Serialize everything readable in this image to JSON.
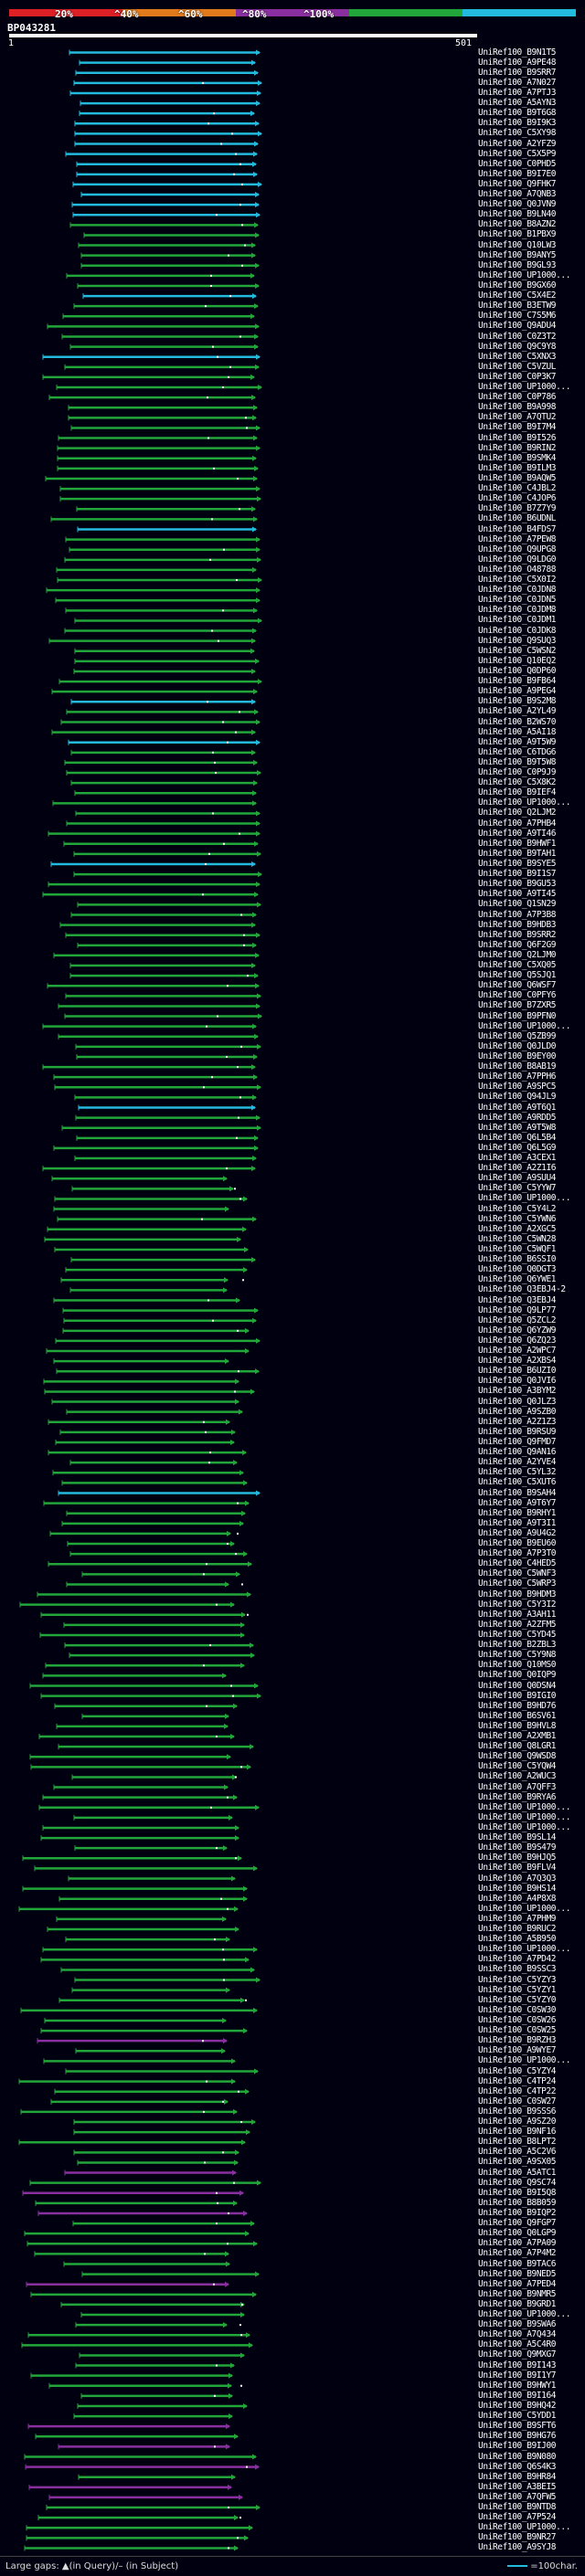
{
  "legend": {
    "segments": [
      {
        "label": "20%",
        "color": "#dd1f26"
      },
      {
        "label": "^40%",
        "color": "#e07a1c"
      },
      {
        "label": "^60%",
        "color": "#8a2fa0"
      },
      {
        "label": "^80%",
        "color": "#22a63a"
      },
      {
        "label": "^100%",
        "color": "#22bbdd"
      }
    ]
  },
  "query": {
    "name": "BP043281",
    "start": "1",
    "end": "501"
  },
  "footer": {
    "left_text": "Large gaps: ▲(in Query)/– (in Subject)",
    "scale_text": "=100char."
  },
  "hits": [
    {
      "label": "UniRef100_B9N1T5",
      "color": "#22bbdd"
    },
    {
      "label": "UniRef100_A9PE48",
      "color": "#22bbdd"
    },
    {
      "label": "UniRef100_B9SRR7",
      "color": "#22bbdd"
    },
    {
      "label": "UniRef100_A7N027",
      "color": "#22bbdd"
    },
    {
      "label": "UniRef100_A7PTJ3",
      "color": "#22bbdd"
    },
    {
      "label": "UniRef100_A5AYN3",
      "color": "#22bbdd"
    },
    {
      "label": "UniRef100_B9T6G8",
      "color": "#22bbdd"
    },
    {
      "label": "UniRef100_B9I9K3",
      "color": "#22bbdd"
    },
    {
      "label": "UniRef100_C5XY98",
      "color": "#22bbdd"
    },
    {
      "label": "UniRef100_A2YFZ9",
      "color": "#22bbdd"
    },
    {
      "label": "UniRef100_C5X5P9",
      "color": "#22bbdd"
    },
    {
      "label": "UniRef100_C0PHD5",
      "color": "#22bbdd"
    },
    {
      "label": "UniRef100_B9I7E0",
      "color": "#22bbdd"
    },
    {
      "label": "UniRef100_Q9FHK7",
      "color": "#22bbdd"
    },
    {
      "label": "UniRef100_A7QNB3",
      "color": "#22bbdd"
    },
    {
      "label": "UniRef100_Q0JVN9",
      "color": "#22bbdd"
    },
    {
      "label": "UniRef100_B9LN40",
      "color": "#22bbdd"
    },
    {
      "label": "UniRef100_B8AZN2",
      "color": "#22a63a"
    },
    {
      "label": "UniRef100_B1PBX9",
      "color": "#22a63a"
    },
    {
      "label": "UniRef100_Q10LW3",
      "color": "#22a63a"
    },
    {
      "label": "UniRef100_B9ANY5",
      "color": "#22a63a"
    },
    {
      "label": "UniRef100_B9GL93",
      "color": "#22a63a"
    },
    {
      "label": "UniRef100_UP1000...",
      "color": "#22a63a"
    },
    {
      "label": "UniRef100_B9GX60",
      "color": "#22a63a"
    },
    {
      "label": "UniRef100_C5X4E2",
      "color": "#22bbdd"
    },
    {
      "label": "UniRef100_B3ETW9",
      "color": "#22a63a"
    },
    {
      "label": "UniRef100_C7S5M6",
      "color": "#22a63a"
    },
    {
      "label": "UniRef100_Q9ADU4",
      "color": "#22a63a"
    },
    {
      "label": "UniRef100_C0Z3T2",
      "color": "#22a63a"
    },
    {
      "label": "UniRef100_Q9C9Y8",
      "color": "#22a63a"
    },
    {
      "label": "UniRef100_C5XNX3",
      "color": "#22bbdd"
    },
    {
      "label": "UniRef100_C5VZUL",
      "color": "#22a63a"
    },
    {
      "label": "UniRef100_C0P3K7",
      "color": "#22a63a"
    },
    {
      "label": "UniRef100_UP1000...",
      "color": "#22a63a"
    },
    {
      "label": "UniRef100_C0P786",
      "color": "#22a63a"
    },
    {
      "label": "UniRef100_B9A998",
      "color": "#22a63a"
    },
    {
      "label": "UniRef100_A7QTU2",
      "color": "#22a63a"
    },
    {
      "label": "UniRef100_B9I7M4",
      "color": "#22a63a"
    },
    {
      "label": "UniRef100_B9I526",
      "color": "#22a63a"
    },
    {
      "label": "UniRef100_B9RIN2",
      "color": "#22a63a"
    },
    {
      "label": "UniRef100_B9SMK4",
      "color": "#22a63a"
    },
    {
      "label": "UniRef100_B9ILM3",
      "color": "#22a63a"
    },
    {
      "label": "UniRef100_B9AQW5",
      "color": "#22a63a"
    },
    {
      "label": "UniRef100_C4JBL2",
      "color": "#22a63a"
    },
    {
      "label": "UniRef100_C4JOP6",
      "color": "#22a63a"
    },
    {
      "label": "UniRef100_B7Z7Y9",
      "color": "#22a63a"
    },
    {
      "label": "UniRef100_B6UDNL",
      "color": "#22a63a"
    },
    {
      "label": "UniRef100_B4FDS7",
      "color": "#22bbdd"
    },
    {
      "label": "UniRef100_A7PEW8",
      "color": "#22a63a"
    },
    {
      "label": "UniRef100_Q9UPG8",
      "color": "#22a63a"
    },
    {
      "label": "UniRef100_Q9LDG0",
      "color": "#22a63a"
    },
    {
      "label": "UniRef100_O48788",
      "color": "#22a63a"
    },
    {
      "label": "UniRef100_C5X0I2",
      "color": "#22a63a"
    },
    {
      "label": "UniRef100_C0JDN8",
      "color": "#22a63a"
    },
    {
      "label": "UniRef100_C0JDN5",
      "color": "#22a63a"
    },
    {
      "label": "UniRef100_C0JDM8",
      "color": "#22a63a"
    },
    {
      "label": "UniRef100_C0JDM1",
      "color": "#22a63a"
    },
    {
      "label": "UniRef100_C0JDK8",
      "color": "#22a63a"
    },
    {
      "label": "UniRef100_Q9SUQ3",
      "color": "#22a63a"
    },
    {
      "label": "UniRef100_C5WSN2",
      "color": "#22a63a"
    },
    {
      "label": "UniRef100_Q10EQ2",
      "color": "#22a63a"
    },
    {
      "label": "UniRef100_Q0DP60",
      "color": "#22a63a"
    },
    {
      "label": "UniRef100_B9FB64",
      "color": "#22a63a"
    },
    {
      "label": "UniRef100_A9PEG4",
      "color": "#22a63a"
    },
    {
      "label": "UniRef100_B9S2M8",
      "color": "#22bbdd"
    },
    {
      "label": "UniRef100_A2YL49",
      "color": "#22a63a"
    },
    {
      "label": "UniRef100_B2WS70",
      "color": "#22a63a"
    },
    {
      "label": "UniRef100_A5AI18",
      "color": "#22a63a"
    },
    {
      "label": "UniRef100_A9T5W9",
      "color": "#22bbdd"
    },
    {
      "label": "UniRef100_C6TDG6",
      "color": "#22a63a"
    },
    {
      "label": "UniRef100_B9T5W8",
      "color": "#22a63a"
    },
    {
      "label": "UniRef100_C0P9J9",
      "color": "#22a63a"
    },
    {
      "label": "UniRef100_C5X8K2",
      "color": "#22a63a"
    },
    {
      "label": "UniRef100_B9IEF4",
      "color": "#22a63a"
    },
    {
      "label": "UniRef100_UP1000...",
      "color": "#22a63a"
    },
    {
      "label": "UniRef100_Q2LJM2",
      "color": "#22a63a"
    },
    {
      "label": "UniRef100_A7PHB4",
      "color": "#22a63a"
    },
    {
      "label": "UniRef100_A9TI46",
      "color": "#22a63a"
    },
    {
      "label": "UniRef100_B9HWF1",
      "color": "#22a63a"
    },
    {
      "label": "UniRef100_B9TAH1",
      "color": "#22a63a"
    },
    {
      "label": "UniRef100_B9SYE5",
      "color": "#22bbdd"
    },
    {
      "label": "UniRef100_B9I1S7",
      "color": "#22a63a"
    },
    {
      "label": "UniRef100_B9GU53",
      "color": "#22a63a"
    },
    {
      "label": "UniRef100_A9TI45",
      "color": "#22a63a"
    },
    {
      "label": "UniRef100_Q1SN29",
      "color": "#22a63a"
    },
    {
      "label": "UniRef100_A7P3B8",
      "color": "#22a63a"
    },
    {
      "label": "UniRef100_B9HDB3",
      "color": "#22a63a"
    },
    {
      "label": "UniRef100_B9SRR2",
      "color": "#22a63a"
    },
    {
      "label": "UniRef100_Q6F2G9",
      "color": "#22a63a"
    },
    {
      "label": "UniRef100_Q2LJM0",
      "color": "#22a63a"
    },
    {
      "label": "UniRef100_C5XQ05",
      "color": "#22a63a"
    },
    {
      "label": "UniRef100_Q5SJQ1",
      "color": "#22a63a"
    },
    {
      "label": "UniRef100_Q6WSF7",
      "color": "#22a63a"
    },
    {
      "label": "UniRef100_C0PFY6",
      "color": "#22a63a"
    },
    {
      "label": "UniRef100_B7ZXR5",
      "color": "#22a63a"
    },
    {
      "label": "UniRef100_B9PFN0",
      "color": "#22a63a"
    },
    {
      "label": "UniRef100_UP1000...",
      "color": "#22a63a"
    },
    {
      "label": "UniRef100_Q5ZB99",
      "color": "#22a63a"
    },
    {
      "label": "UniRef100_Q0JLD0",
      "color": "#22a63a"
    },
    {
      "label": "UniRef100_B9EY00",
      "color": "#22a63a"
    },
    {
      "label": "UniRef100_B8AB19",
      "color": "#22a63a"
    },
    {
      "label": "UniRef100_A7PPH6",
      "color": "#22a63a"
    },
    {
      "label": "UniRef100_A9SPC5",
      "color": "#22a63a"
    },
    {
      "label": "UniRef100_Q94JL9",
      "color": "#22a63a"
    },
    {
      "label": "UniRef100_A9T6Q1",
      "color": "#22bbdd"
    },
    {
      "label": "UniRef100_A9RDD5",
      "color": "#22a63a"
    },
    {
      "label": "UniRef100_A9T5W8",
      "color": "#22a63a"
    },
    {
      "label": "UniRef100_Q6L5B4",
      "color": "#22a63a"
    },
    {
      "label": "UniRef100_Q6L5G9",
      "color": "#22a63a"
    },
    {
      "label": "UniRef100_A3CEX1",
      "color": "#22a63a"
    },
    {
      "label": "UniRef100_A2Z1I6",
      "color": "#22a63a"
    },
    {
      "label": "UniRef100_A9SUU4",
      "color": "#22a63a"
    },
    {
      "label": "UniRef100_C5YYW7",
      "color": "#22a63a"
    },
    {
      "label": "UniRef100_UP1000...",
      "color": "#22a63a"
    },
    {
      "label": "UniRef100_C5Y4L2",
      "color": "#22a63a"
    },
    {
      "label": "UniRef100_C5YWN6",
      "color": "#22a63a"
    },
    {
      "label": "UniRef100_A2XGC5",
      "color": "#22a63a"
    },
    {
      "label": "UniRef100_C5WN28",
      "color": "#22a63a"
    },
    {
      "label": "UniRef100_C5WQF1",
      "color": "#22a63a"
    },
    {
      "label": "UniRef100_B6SSI0",
      "color": "#22a63a"
    },
    {
      "label": "UniRef100_Q0DGT3",
      "color": "#22a63a"
    },
    {
      "label": "UniRef100_Q6YWE1",
      "color": "#22a63a"
    },
    {
      "label": "UniRef100_Q3EBJ4-2",
      "color": "#22a63a"
    },
    {
      "label": "UniRef100_Q3EBJ4",
      "color": "#22a63a"
    },
    {
      "label": "UniRef100_Q9LP77",
      "color": "#22a63a"
    },
    {
      "label": "UniRef100_Q5ZCL2",
      "color": "#22a63a"
    },
    {
      "label": "UniRef100_Q6YZW9",
      "color": "#22a63a"
    },
    {
      "label": "UniRef100_Q6ZQ23",
      "color": "#22a63a"
    },
    {
      "label": "UniRef100_A2WPC7",
      "color": "#22a63a"
    },
    {
      "label": "UniRef100_A2XBS4",
      "color": "#22a63a"
    },
    {
      "label": "UniRef100_B6UZI0",
      "color": "#22a63a"
    },
    {
      "label": "UniRef100_Q0JVI6",
      "color": "#22a63a"
    },
    {
      "label": "UniRef100_A3BYM2",
      "color": "#22a63a"
    },
    {
      "label": "UniRef100_Q0JLZ3",
      "color": "#22a63a"
    },
    {
      "label": "UniRef100_A9SZB0",
      "color": "#22a63a"
    },
    {
      "label": "UniRef100_A2Z1Z3",
      "color": "#22a63a"
    },
    {
      "label": "UniRef100_B9RSU9",
      "color": "#22a63a"
    },
    {
      "label": "UniRef100_Q9FMD7",
      "color": "#22a63a"
    },
    {
      "label": "UniRef100_Q9AN16",
      "color": "#22a63a"
    },
    {
      "label": "UniRef100_A2YVE4",
      "color": "#22a63a"
    },
    {
      "label": "UniRef100_C5YL32",
      "color": "#22a63a"
    },
    {
      "label": "UniRef100_C5XUT6",
      "color": "#22a63a"
    },
    {
      "label": "UniRef100_B9SAH4",
      "color": "#22bbdd"
    },
    {
      "label": "UniRef100_A9T6Y7",
      "color": "#22a63a"
    },
    {
      "label": "UniRef100_B9RHY1",
      "color": "#22a63a"
    },
    {
      "label": "UniRef100_A9T3I1",
      "color": "#22a63a"
    },
    {
      "label": "UniRef100_A9U4G2",
      "color": "#22a63a"
    },
    {
      "label": "UniRef100_B9EU60",
      "color": "#22a63a"
    },
    {
      "label": "UniRef100_A7P3T0",
      "color": "#22a63a"
    },
    {
      "label": "UniRef100_C4HED5",
      "color": "#22a63a"
    },
    {
      "label": "UniRef100_C5WNF3",
      "color": "#22a63a"
    },
    {
      "label": "UniRef100_C5WRP3",
      "color": "#22a63a"
    },
    {
      "label": "UniRef100_B9HDM3",
      "color": "#22a63a"
    },
    {
      "label": "UniRef100_C5Y3I2",
      "color": "#22a63a"
    },
    {
      "label": "UniRef100_A3AH11",
      "color": "#22a63a"
    },
    {
      "label": "UniRef100_A2ZFM5",
      "color": "#22a63a"
    },
    {
      "label": "UniRef100_C5YD45",
      "color": "#22a63a"
    },
    {
      "label": "UniRef100_B2ZBL3",
      "color": "#22a63a"
    },
    {
      "label": "UniRef100_C5Y9N8",
      "color": "#22a63a"
    },
    {
      "label": "UniRef100_Q10MS0",
      "color": "#22a63a"
    },
    {
      "label": "UniRef100_Q0IQP9",
      "color": "#22a63a"
    },
    {
      "label": "UniRef100_Q0DSN4",
      "color": "#22a63a"
    },
    {
      "label": "UniRef100_B9IGI0",
      "color": "#22a63a"
    },
    {
      "label": "UniRef100_B9HD76",
      "color": "#22a63a"
    },
    {
      "label": "UniRef100_B6SV61",
      "color": "#22a63a"
    },
    {
      "label": "UniRef100_B9HVL8",
      "color": "#22a63a"
    },
    {
      "label": "UniRef100_A2XMB1",
      "color": "#22a63a"
    },
    {
      "label": "UniRef100_Q8LGR1",
      "color": "#22a63a"
    },
    {
      "label": "UniRef100_Q9WSD8",
      "color": "#22a63a"
    },
    {
      "label": "UniRef100_C5YQW4",
      "color": "#22a63a"
    },
    {
      "label": "UniRef100_A2WUC3",
      "color": "#22a63a"
    },
    {
      "label": "UniRef100_A7QFF3",
      "color": "#22a63a"
    },
    {
      "label": "UniRef100_B9RYA6",
      "color": "#22a63a"
    },
    {
      "label": "UniRef100_UP1000...",
      "color": "#22a63a"
    },
    {
      "label": "UniRef100_UP1000...",
      "color": "#22a63a"
    },
    {
      "label": "UniRef100_UP1000...",
      "color": "#22a63a"
    },
    {
      "label": "UniRef100_B9SL14",
      "color": "#22a63a"
    },
    {
      "label": "UniRef100_B9S479",
      "color": "#22a63a"
    },
    {
      "label": "UniRef100_B9HJQ5",
      "color": "#22a63a"
    },
    {
      "label": "UniRef100_B9FLV4",
      "color": "#22a63a"
    },
    {
      "label": "UniRef100_A7Q3Q3",
      "color": "#22a63a"
    },
    {
      "label": "UniRef100_B9HS14",
      "color": "#22a63a"
    },
    {
      "label": "UniRef100_A4P8X8",
      "color": "#22a63a"
    },
    {
      "label": "UniRef100_UP1000...",
      "color": "#22a63a"
    },
    {
      "label": "UniRef100_A7PHM9",
      "color": "#22a63a"
    },
    {
      "label": "UniRef100_B9RUC2",
      "color": "#22a63a"
    },
    {
      "label": "UniRef100_A5B950",
      "color": "#22a63a"
    },
    {
      "label": "UniRef100_UP1000...",
      "color": "#22a63a"
    },
    {
      "label": "UniRef100_A7PD42",
      "color": "#22a63a"
    },
    {
      "label": "UniRef100_B9SSC3",
      "color": "#22a63a"
    },
    {
      "label": "UniRef100_C5YZY3",
      "color": "#22a63a"
    },
    {
      "label": "UniRef100_C5YZY1",
      "color": "#22a63a"
    },
    {
      "label": "UniRef100_C5YZY0",
      "color": "#22a63a"
    },
    {
      "label": "UniRef100_C0SW30",
      "color": "#22a63a"
    },
    {
      "label": "UniRef100_C0SW26",
      "color": "#22a63a"
    },
    {
      "label": "UniRef100_C0SW25",
      "color": "#22a63a"
    },
    {
      "label": "UniRef100_B9RZH3",
      "color": "#8a2fa0"
    },
    {
      "label": "UniRef100_A9WYE7",
      "color": "#22a63a"
    },
    {
      "label": "UniRef100_UP1000...",
      "color": "#22a63a"
    },
    {
      "label": "UniRef100_C5YZY4",
      "color": "#22a63a"
    },
    {
      "label": "UniRef100_C4TP24",
      "color": "#22a63a"
    },
    {
      "label": "UniRef100_C4TP22",
      "color": "#22a63a"
    },
    {
      "label": "UniRef100_C0SW27",
      "color": "#22a63a"
    },
    {
      "label": "UniRef100_B9SSS6",
      "color": "#22a63a"
    },
    {
      "label": "UniRef100_A9SZ20",
      "color": "#22a63a"
    },
    {
      "label": "UniRef100_B9NF16",
      "color": "#22a63a"
    },
    {
      "label": "UniRef100_B8LPT2",
      "color": "#22a63a"
    },
    {
      "label": "UniRef100_A5C2V6",
      "color": "#22a63a"
    },
    {
      "label": "UniRef100_A9SX05",
      "color": "#22a63a"
    },
    {
      "label": "UniRef100_A5ATC1",
      "color": "#8a2fa0"
    },
    {
      "label": "UniRef100_Q9SC74",
      "color": "#22a63a"
    },
    {
      "label": "UniRef100_B9I5Q8",
      "color": "#8a2fa0"
    },
    {
      "label": "UniRef100_B8B059",
      "color": "#22a63a"
    },
    {
      "label": "UniRef100_B9IQP2",
      "color": "#8a2fa0"
    },
    {
      "label": "UniRef100_Q9FGP7",
      "color": "#22a63a"
    },
    {
      "label": "UniRef100_Q0LGP9",
      "color": "#22a63a"
    },
    {
      "label": "UniRef100_A7PA09",
      "color": "#22a63a"
    },
    {
      "label": "UniRef100_A7P4M2",
      "color": "#22a63a"
    },
    {
      "label": "UniRef100_B9TAC6",
      "color": "#22a63a"
    },
    {
      "label": "UniRef100_B9NED5",
      "color": "#22a63a"
    },
    {
      "label": "UniRef100_A7PED4",
      "color": "#8a2fa0"
    },
    {
      "label": "UniRef100_B9NMR5",
      "color": "#22a63a"
    },
    {
      "label": "UniRef100_B9GRD1",
      "color": "#22a63a"
    },
    {
      "label": "UniRef100_UP1000...",
      "color": "#22a63a"
    },
    {
      "label": "UniRef100_B9SWA6",
      "color": "#22a63a"
    },
    {
      "label": "UniRef100_A7Q434",
      "color": "#22a63a"
    },
    {
      "label": "UniRef100_A5C4R0",
      "color": "#22a63a"
    },
    {
      "label": "UniRef100_Q9MXG7",
      "color": "#22a63a"
    },
    {
      "label": "UniRef100_B9I143",
      "color": "#22a63a"
    },
    {
      "label": "UniRef100_B9I1Y7",
      "color": "#22a63a"
    },
    {
      "label": "UniRef100_B9HWY1",
      "color": "#22a63a"
    },
    {
      "label": "UniRef100_B9I164",
      "color": "#22a63a"
    },
    {
      "label": "UniRef100_B9HQ42",
      "color": "#22a63a"
    },
    {
      "label": "UniRef100_C5YDD1",
      "color": "#22a63a"
    },
    {
      "label": "UniRef100_B9SFT6",
      "color": "#8a2fa0"
    },
    {
      "label": "UniRef100_B9HG76",
      "color": "#22a63a"
    },
    {
      "label": "UniRef100_B9IJ00",
      "color": "#8a2fa0"
    },
    {
      "label": "UniRef100_B9N080",
      "color": "#22a63a"
    },
    {
      "label": "UniRef100_Q6S4K3",
      "color": "#8a2fa0"
    },
    {
      "label": "UniRef100_B9HR84",
      "color": "#22a63a"
    },
    {
      "label": "UniRef100_A3BEI5",
      "color": "#8a2fa0"
    },
    {
      "label": "UniRef100_A7QFW5",
      "color": "#8a2fa0"
    },
    {
      "label": "UniRef100_B9NTD8",
      "color": "#22a63a"
    },
    {
      "label": "UniRef100_A7P524",
      "color": "#22a63a"
    },
    {
      "label": "UniRef100_UP1000...",
      "color": "#22a63a"
    },
    {
      "label": "UniRef100_B9NR27",
      "color": "#22a63a"
    },
    {
      "label": "UniRef100_A9SYJ8",
      "color": "#22a63a"
    }
  ]
}
